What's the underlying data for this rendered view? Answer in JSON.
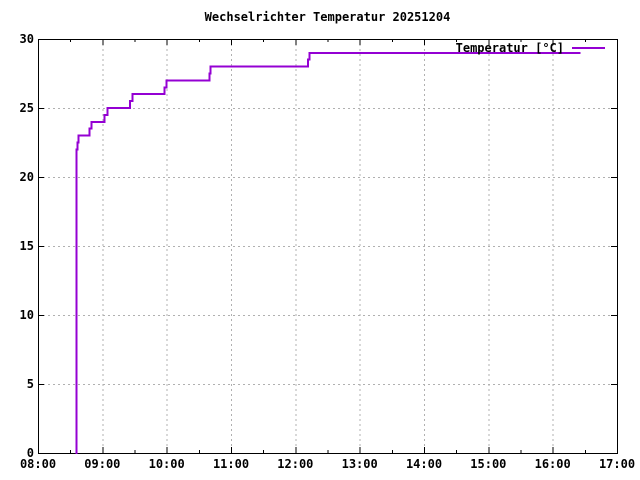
{
  "chart_data": {
    "type": "line",
    "title": "Wechselrichter Temperatur 20251204",
    "xlabel": "",
    "ylabel": "",
    "x_axis": {
      "tick_labels": [
        "08:00",
        "09:00",
        "10:00",
        "11:00",
        "12:00",
        "13:00",
        "14:00",
        "15:00",
        "16:00",
        "17:00"
      ],
      "minor_ticks": "every 30 minutes",
      "lim_hours": [
        8,
        17
      ]
    },
    "y_axis": {
      "tick_labels": [
        "0",
        "5",
        "10",
        "15",
        "20",
        "25",
        "30"
      ],
      "tick_values": [
        0,
        5,
        10,
        15,
        20,
        25,
        30
      ],
      "lim": [
        0,
        30
      ]
    },
    "grid": {
      "shown": true,
      "style": "dashed",
      "color": "#b0b0b0"
    },
    "legend": {
      "label": "Temperatur [°C]",
      "position": "top-right-inside"
    },
    "series": [
      {
        "name": "Temperatur [°C]",
        "color": "#9400d3",
        "interpolation": "step-after",
        "points": [
          [
            "08:35",
            0
          ],
          [
            "08:36",
            22
          ],
          [
            "08:37",
            22.5
          ],
          [
            "08:38",
            23
          ],
          [
            "08:48",
            23.5
          ],
          [
            "08:50",
            24
          ],
          [
            "09:02",
            24.5
          ],
          [
            "09:05",
            25
          ],
          [
            "09:26",
            25.5
          ],
          [
            "09:28",
            26
          ],
          [
            "09:58",
            26.5
          ],
          [
            "10:00",
            27
          ],
          [
            "10:40",
            27.5
          ],
          [
            "10:41",
            28
          ],
          [
            "12:12",
            28.5
          ],
          [
            "12:13",
            29
          ],
          [
            "16:26",
            29
          ]
        ]
      }
    ],
    "colors": {
      "axis": "#000000",
      "text": "#000000",
      "background": "#ffffff"
    }
  }
}
